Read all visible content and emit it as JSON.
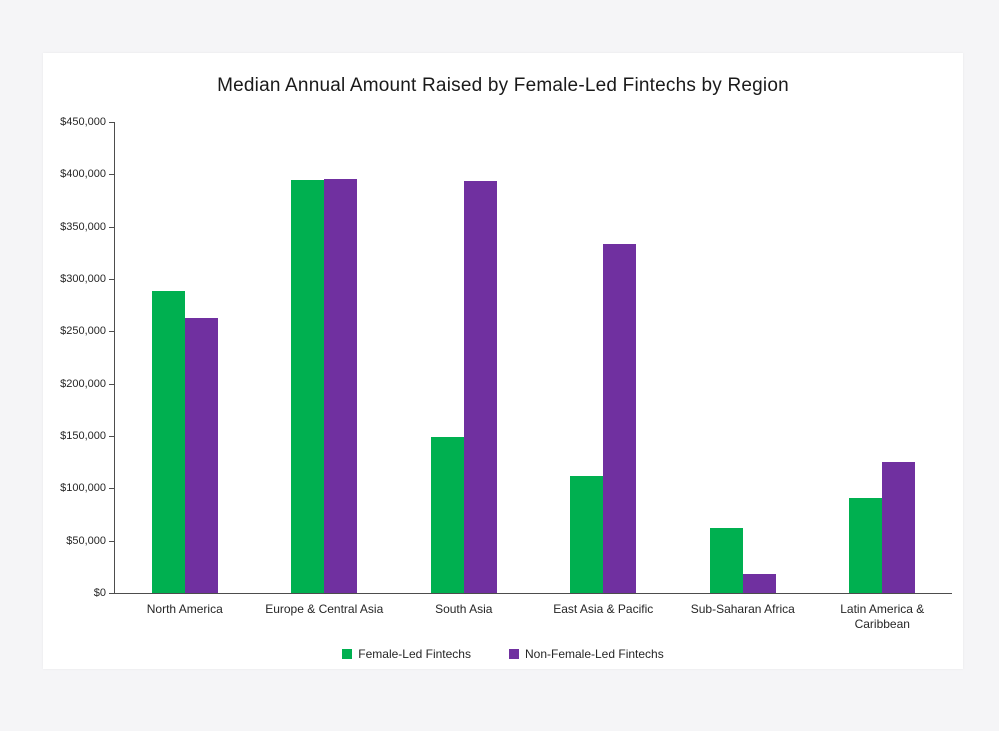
{
  "window": {
    "background_color": "#f5f5f7",
    "card_background_color": "#ffffff"
  },
  "chart_data": {
    "type": "bar",
    "title": "Median Annual Amount Raised by Female-Led Fintechs by Region",
    "categories": [
      "North America",
      "Europe & Central Asia",
      "South Asia",
      "East Asia & Pacific",
      "Sub-Saharan Africa",
      "Latin America & Caribbean"
    ],
    "series": [
      {
        "name": "Female-Led Fintechs",
        "color": "#00B050",
        "values": [
          288500,
          394500,
          149000,
          111500,
          62500,
          90500
        ]
      },
      {
        "name": "Non-Female-Led Fintechs",
        "color": "#7030A0",
        "values": [
          263000,
          396000,
          393500,
          333000,
          18500,
          125000
        ]
      }
    ],
    "y_axis": {
      "min": 0,
      "max": 450000,
      "step": 50000,
      "tick_labels": [
        "$0",
        "$50,000",
        "$100,000",
        "$150,000",
        "$200,000",
        "$250,000",
        "$300,000",
        "$350,000",
        "$400,000",
        "$450,000"
      ]
    },
    "grid": false,
    "legend_position": "bottom",
    "axis_color": "#4d4d4d",
    "text_color": "#262626"
  }
}
